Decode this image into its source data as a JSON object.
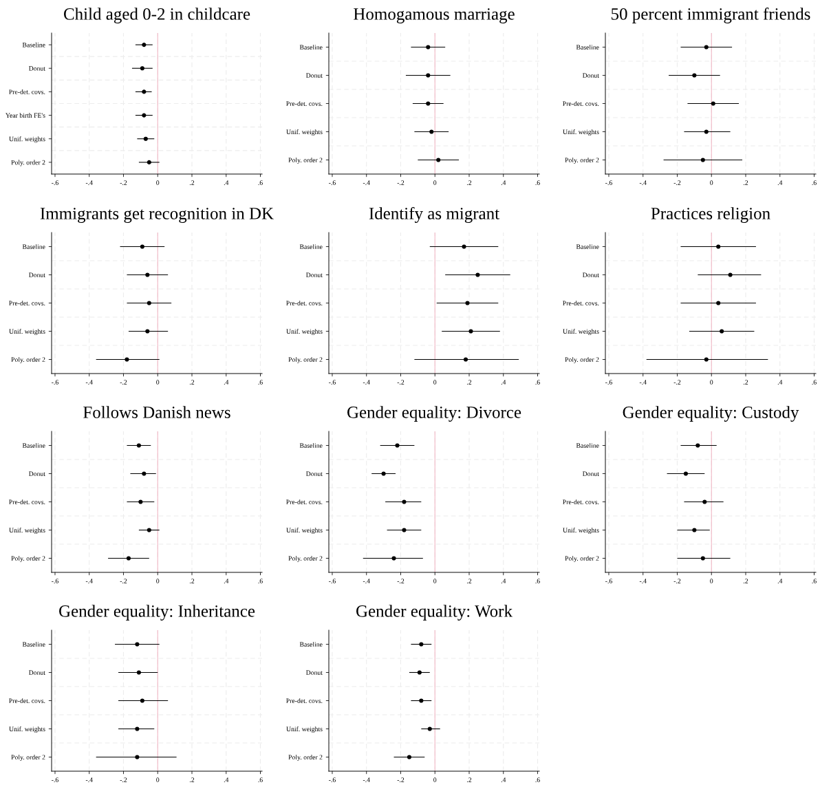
{
  "chart_data": [
    {
      "type": "scatter",
      "title": "Child aged 0-2 in childcare",
      "orientation": "horizontal",
      "categories": [
        "Baseline",
        "Donut",
        "Pre-det. covs.",
        "Year birth FE's",
        "Unif. weights",
        "Poly. order 2"
      ],
      "values": [
        -0.08,
        -0.09,
        -0.08,
        -0.08,
        -0.07,
        -0.05
      ],
      "errors": [
        [
          -0.13,
          -0.03
        ],
        [
          -0.15,
          -0.03
        ],
        [
          -0.13,
          -0.035
        ],
        [
          -0.13,
          -0.03
        ],
        [
          -0.12,
          -0.02
        ],
        [
          -0.11,
          0.01
        ]
      ],
      "color": "#000000",
      "marker": "circle",
      "grid": true,
      "xlim": [
        -0.62,
        0.61
      ],
      "xticks": [
        {
          "value": -0.6,
          "label": "-.6"
        },
        {
          "value": -0.4,
          "label": "-.4"
        },
        {
          "value": -0.2,
          "label": "-.2"
        },
        0,
        {
          "value": 0.2,
          "label": ".2"
        },
        {
          "value": 0.4,
          "label": ".4"
        },
        {
          "value": 0.6,
          "label": ".6"
        }
      ],
      "ref_lines": [
        {
          "axis": "x",
          "value": 0,
          "color": "#f2b8c6"
        }
      ]
    },
    {
      "type": "scatter",
      "title": "Homogamous marriage",
      "orientation": "horizontal",
      "categories": [
        "Baseline",
        "Donut",
        "Pre-det. covs.",
        "Unif. weights",
        "Poly. order 2"
      ],
      "values": [
        -0.04,
        -0.04,
        -0.04,
        -0.02,
        0.02
      ],
      "errors": [
        [
          -0.14,
          0.06
        ],
        [
          -0.17,
          0.09
        ],
        [
          -0.13,
          0.05
        ],
        [
          -0.12,
          0.08
        ],
        [
          -0.1,
          0.14
        ]
      ],
      "color": "#000000",
      "marker": "circle",
      "grid": true,
      "xlim": [
        -0.62,
        0.61
      ],
      "xticks": [
        {
          "value": -0.6,
          "label": "-.6"
        },
        {
          "value": -0.4,
          "label": "-.4"
        },
        {
          "value": -0.2,
          "label": "-.2"
        },
        0,
        {
          "value": 0.2,
          "label": ".2"
        },
        {
          "value": 0.4,
          "label": ".4"
        },
        {
          "value": 0.6,
          "label": ".6"
        }
      ],
      "ref_lines": [
        {
          "axis": "x",
          "value": 0,
          "color": "#f2b8c6"
        }
      ]
    },
    {
      "type": "scatter",
      "title": "50 percent immigrant friends",
      "orientation": "horizontal",
      "categories": [
        "Baseline",
        "Donut",
        "Pre-det. covs.",
        "Unif. weights",
        "Poly. order 2"
      ],
      "values": [
        -0.03,
        -0.1,
        0.01,
        -0.03,
        -0.05
      ],
      "errors": [
        [
          -0.18,
          0.12
        ],
        [
          -0.25,
          0.05
        ],
        [
          -0.14,
          0.16
        ],
        [
          -0.16,
          0.11
        ],
        [
          -0.28,
          0.18
        ]
      ],
      "color": "#000000",
      "marker": "circle",
      "grid": true,
      "xlim": [
        -0.62,
        0.61
      ],
      "xticks": [
        {
          "value": -0.6,
          "label": "-.6"
        },
        {
          "value": -0.4,
          "label": "-.4"
        },
        {
          "value": -0.2,
          "label": "-.2"
        },
        0,
        {
          "value": 0.2,
          "label": ".2"
        },
        {
          "value": 0.4,
          "label": ".4"
        },
        {
          "value": 0.6,
          "label": ".6"
        }
      ],
      "ref_lines": [
        {
          "axis": "x",
          "value": 0,
          "color": "#f2b8c6"
        }
      ]
    },
    {
      "type": "scatter",
      "title": "Immigrants get recognition in DK",
      "orientation": "horizontal",
      "categories": [
        "Baseline",
        "Donut",
        "Pre-det. covs.",
        "Unif. weights",
        "Poly. order 2"
      ],
      "values": [
        -0.09,
        -0.06,
        -0.05,
        -0.06,
        -0.18
      ],
      "errors": [
        [
          -0.22,
          0.04
        ],
        [
          -0.18,
          0.06
        ],
        [
          -0.18,
          0.08
        ],
        [
          -0.17,
          0.06
        ],
        [
          -0.36,
          0.01
        ]
      ],
      "color": "#000000",
      "marker": "circle",
      "grid": true,
      "xlim": [
        -0.62,
        0.61
      ],
      "xticks": [
        {
          "value": -0.6,
          "label": "-.6"
        },
        {
          "value": -0.4,
          "label": "-.4"
        },
        {
          "value": -0.2,
          "label": "-.2"
        },
        0,
        {
          "value": 0.2,
          "label": ".2"
        },
        {
          "value": 0.4,
          "label": ".4"
        },
        {
          "value": 0.6,
          "label": ".6"
        }
      ],
      "ref_lines": [
        {
          "axis": "x",
          "value": 0,
          "color": "#f2b8c6"
        }
      ]
    },
    {
      "type": "scatter",
      "title": "Identify as migrant",
      "orientation": "horizontal",
      "categories": [
        "Baseline",
        "Donut",
        "Pre-det. covs.",
        "Unif. weights",
        "Poly. order 2"
      ],
      "values": [
        0.17,
        0.25,
        0.19,
        0.21,
        0.18
      ],
      "errors": [
        [
          -0.03,
          0.37
        ],
        [
          0.06,
          0.44
        ],
        [
          0.01,
          0.37
        ],
        [
          0.04,
          0.38
        ],
        [
          -0.12,
          0.49
        ]
      ],
      "color": "#000000",
      "marker": "circle",
      "grid": true,
      "xlim": [
        -0.62,
        0.61
      ],
      "xticks": [
        {
          "value": -0.6,
          "label": "-.6"
        },
        {
          "value": -0.4,
          "label": "-.4"
        },
        {
          "value": -0.2,
          "label": "-.2"
        },
        0,
        {
          "value": 0.2,
          "label": ".2"
        },
        {
          "value": 0.4,
          "label": ".4"
        },
        {
          "value": 0.6,
          "label": ".6"
        }
      ],
      "ref_lines": [
        {
          "axis": "x",
          "value": 0,
          "color": "#f2b8c6"
        }
      ]
    },
    {
      "type": "scatter",
      "title": "Practices religion",
      "orientation": "horizontal",
      "categories": [
        "Baseline",
        "Donut",
        "Pre-det. covs.",
        "Unif. weights",
        "Poly. order 2"
      ],
      "values": [
        0.04,
        0.11,
        0.04,
        0.06,
        -0.03
      ],
      "errors": [
        [
          -0.18,
          0.26
        ],
        [
          -0.08,
          0.29
        ],
        [
          -0.18,
          0.26
        ],
        [
          -0.13,
          0.25
        ],
        [
          -0.38,
          0.33
        ]
      ],
      "color": "#000000",
      "marker": "circle",
      "grid": true,
      "xlim": [
        -0.62,
        0.61
      ],
      "xticks": [
        {
          "value": -0.6,
          "label": "-.6"
        },
        {
          "value": -0.4,
          "label": "-.4"
        },
        {
          "value": -0.2,
          "label": "-.2"
        },
        0,
        {
          "value": 0.2,
          "label": ".2"
        },
        {
          "value": 0.4,
          "label": ".4"
        },
        {
          "value": 0.6,
          "label": ".6"
        }
      ],
      "ref_lines": [
        {
          "axis": "x",
          "value": 0,
          "color": "#f2b8c6"
        }
      ]
    },
    {
      "type": "scatter",
      "title": "Follows Danish news",
      "orientation": "horizontal",
      "categories": [
        "Baseline",
        "Donut",
        "Pre-det. covs.",
        "Unif. weights",
        "Poly. order 2"
      ],
      "values": [
        -0.11,
        -0.08,
        -0.1,
        -0.05,
        -0.17
      ],
      "errors": [
        [
          -0.18,
          -0.04
        ],
        [
          -0.16,
          -0.01
        ],
        [
          -0.18,
          -0.02
        ],
        [
          -0.11,
          0.01
        ],
        [
          -0.29,
          -0.05
        ]
      ],
      "color": "#000000",
      "marker": "circle",
      "grid": true,
      "xlim": [
        -0.62,
        0.61
      ],
      "xticks": [
        {
          "value": -0.6,
          "label": "-.6"
        },
        {
          "value": -0.4,
          "label": "-.4"
        },
        {
          "value": -0.2,
          "label": "-.2"
        },
        0,
        {
          "value": 0.2,
          "label": ".2"
        },
        {
          "value": 0.4,
          "label": ".4"
        },
        {
          "value": 0.6,
          "label": ".6"
        }
      ],
      "ref_lines": [
        {
          "axis": "x",
          "value": 0,
          "color": "#f2b8c6"
        }
      ]
    },
    {
      "type": "scatter",
      "title": "Gender equality: Divorce",
      "orientation": "horizontal",
      "categories": [
        "Baseline",
        "Donut",
        "Pre-det. covs.",
        "Unif. weights",
        "Poly. order 2"
      ],
      "values": [
        -0.22,
        -0.3,
        -0.18,
        -0.18,
        -0.24
      ],
      "errors": [
        [
          -0.32,
          -0.12
        ],
        [
          -0.37,
          -0.23
        ],
        [
          -0.29,
          -0.08
        ],
        [
          -0.28,
          -0.08
        ],
        [
          -0.42,
          -0.07
        ]
      ],
      "color": "#000000",
      "marker": "circle",
      "grid": true,
      "xlim": [
        -0.62,
        0.61
      ],
      "xticks": [
        {
          "value": -0.6,
          "label": "-.6"
        },
        {
          "value": -0.4,
          "label": "-.4"
        },
        {
          "value": -0.2,
          "label": "-.2"
        },
        0,
        {
          "value": 0.2,
          "label": ".2"
        },
        {
          "value": 0.4,
          "label": ".4"
        },
        {
          "value": 0.6,
          "label": ".6"
        }
      ],
      "ref_lines": [
        {
          "axis": "x",
          "value": 0,
          "color": "#f2b8c6"
        }
      ]
    },
    {
      "type": "scatter",
      "title": "Gender equality: Custody",
      "orientation": "horizontal",
      "categories": [
        "Baseline",
        "Donut",
        "Pre-det. covs.",
        "Unif. weights",
        "Poly. order 2"
      ],
      "values": [
        -0.08,
        -0.15,
        -0.04,
        -0.1,
        -0.05
      ],
      "errors": [
        [
          -0.18,
          0.03
        ],
        [
          -0.26,
          -0.04
        ],
        [
          -0.16,
          0.07
        ],
        [
          -0.2,
          -0.01
        ],
        [
          -0.2,
          0.11
        ]
      ],
      "color": "#000000",
      "marker": "circle",
      "grid": true,
      "xlim": [
        -0.62,
        0.61
      ],
      "xticks": [
        {
          "value": -0.6,
          "label": "-.6"
        },
        {
          "value": -0.4,
          "label": "-.4"
        },
        {
          "value": -0.2,
          "label": "-.2"
        },
        0,
        {
          "value": 0.2,
          "label": ".2"
        },
        {
          "value": 0.4,
          "label": ".4"
        },
        {
          "value": 0.6,
          "label": ".6"
        }
      ],
      "ref_lines": [
        {
          "axis": "x",
          "value": 0,
          "color": "#f2b8c6"
        }
      ]
    },
    {
      "type": "scatter",
      "title": "Gender equality: Inheritance",
      "orientation": "horizontal",
      "categories": [
        "Baseline",
        "Donut",
        "Pre-det. covs.",
        "Unif. weights",
        "Poly. order 2"
      ],
      "values": [
        -0.12,
        -0.11,
        -0.09,
        -0.12,
        -0.12
      ],
      "errors": [
        [
          -0.25,
          0.01
        ],
        [
          -0.23,
          0.0
        ],
        [
          -0.23,
          0.06
        ],
        [
          -0.23,
          -0.02
        ],
        [
          -0.36,
          0.11
        ]
      ],
      "color": "#000000",
      "marker": "circle",
      "grid": true,
      "xlim": [
        -0.62,
        0.61
      ],
      "xticks": [
        {
          "value": -0.6,
          "label": "-.6"
        },
        {
          "value": -0.4,
          "label": "-.4"
        },
        {
          "value": -0.2,
          "label": "-.2"
        },
        0,
        {
          "value": 0.2,
          "label": ".2"
        },
        {
          "value": 0.4,
          "label": ".4"
        },
        {
          "value": 0.6,
          "label": ".6"
        }
      ],
      "ref_lines": [
        {
          "axis": "x",
          "value": 0,
          "color": "#f2b8c6"
        }
      ]
    },
    {
      "type": "scatter",
      "title": "Gender equality: Work",
      "orientation": "horizontal",
      "categories": [
        "Baseline",
        "Donut",
        "Pre-det. covs.",
        "Unif. weights",
        "Poly. order 2"
      ],
      "values": [
        -0.08,
        -0.09,
        -0.08,
        -0.03,
        -0.15
      ],
      "errors": [
        [
          -0.14,
          -0.02
        ],
        [
          -0.15,
          -0.03
        ],
        [
          -0.14,
          -0.02
        ],
        [
          -0.08,
          0.03
        ],
        [
          -0.24,
          -0.06
        ]
      ],
      "color": "#000000",
      "marker": "circle",
      "grid": true,
      "xlim": [
        -0.62,
        0.61
      ],
      "xticks": [
        {
          "value": -0.6,
          "label": "-.6"
        },
        {
          "value": -0.4,
          "label": "-.4"
        },
        {
          "value": -0.2,
          "label": "-.2"
        },
        0,
        {
          "value": 0.2,
          "label": ".2"
        },
        {
          "value": 0.4,
          "label": ".4"
        },
        {
          "value": 0.6,
          "label": ".6"
        }
      ],
      "ref_lines": [
        {
          "axis": "x",
          "value": 0,
          "color": "#f2b8c6"
        }
      ]
    }
  ]
}
